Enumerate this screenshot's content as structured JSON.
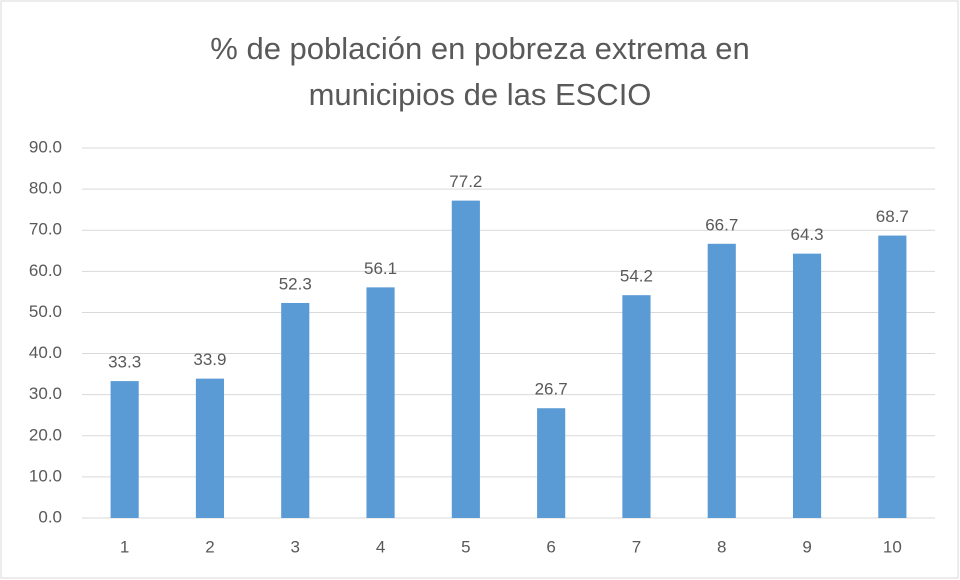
{
  "chart_data": {
    "type": "bar",
    "title": "% de población en pobreza extrema en municipios de las ESCIO",
    "categories": [
      "1",
      "2",
      "3",
      "4",
      "5",
      "6",
      "7",
      "8",
      "9",
      "10"
    ],
    "values": [
      33.3,
      33.9,
      52.3,
      56.1,
      77.2,
      26.7,
      54.2,
      66.7,
      64.3,
      68.7
    ],
    "color": "#5b9bd5",
    "ylim": [
      0,
      90
    ],
    "yticks": [
      {
        "value": 0,
        "label": "0.0"
      },
      {
        "value": 10,
        "label": "10.0"
      },
      {
        "value": 20,
        "label": "20.0"
      },
      {
        "value": 30,
        "label": "30.0"
      },
      {
        "value": 40,
        "label": "40.0"
      },
      {
        "value": 50,
        "label": "50.0"
      },
      {
        "value": 60,
        "label": "60.0"
      },
      {
        "value": 70,
        "label": "70.0"
      },
      {
        "value": 80,
        "label": "80.0"
      },
      {
        "value": 90,
        "label": "90.0"
      }
    ],
    "grid": true
  }
}
